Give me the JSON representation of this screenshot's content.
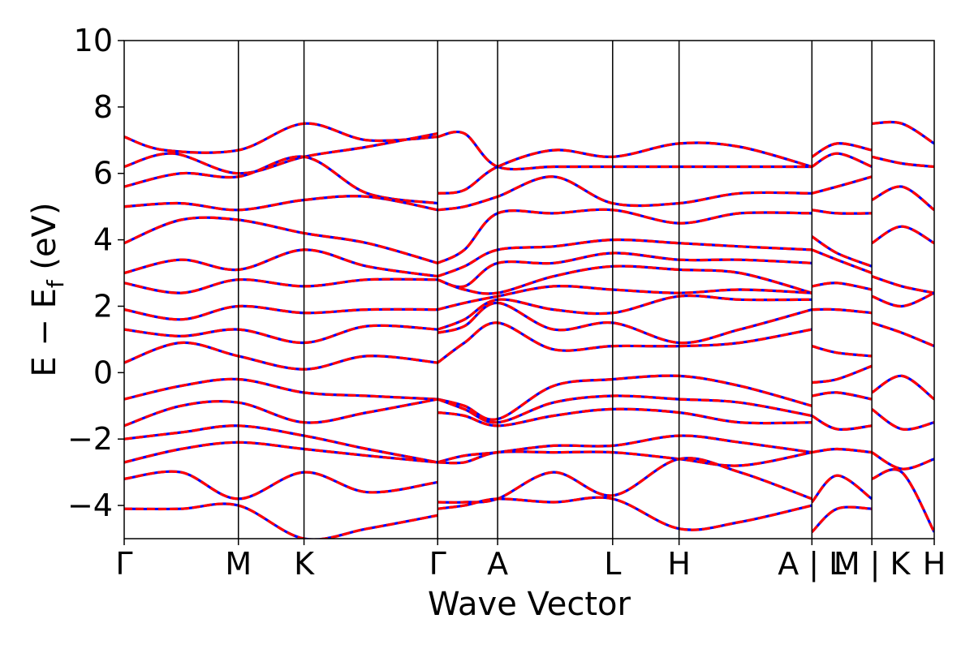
{
  "chart_data": {
    "type": "line",
    "title": "",
    "xlabel": "Wave Vector",
    "ylabel_main": "E − E",
    "ylabel_sub": "f",
    "ylabel_unit": " (eV)",
    "ylim": [
      -5,
      10
    ],
    "yticks": [
      -4,
      -2,
      0,
      2,
      4,
      6,
      8,
      10
    ],
    "ytick_labels": [
      "−4",
      "−2",
      "0",
      "2",
      "4",
      "6",
      "8",
      "10"
    ],
    "xlim": [
      0,
      1
    ],
    "kpoints": [
      {
        "label": "Γ",
        "x": 0.0
      },
      {
        "label": "M",
        "x": 0.141
      },
      {
        "label": "K",
        "x": 0.222
      },
      {
        "label": "Γ",
        "x": 0.387
      },
      {
        "label": "A",
        "x": 0.461
      },
      {
        "label": "L",
        "x": 0.603
      },
      {
        "label": "H",
        "x": 0.685
      },
      {
        "label": "A | L",
        "x": 0.849
      },
      {
        "label": "M | K",
        "x": 0.923
      },
      {
        "label": "H",
        "x": 1.0
      }
    ],
    "grid": false,
    "colors": {
      "band_primary": "#ff0000",
      "band_secondary": "#0000ff",
      "frame": "#000000"
    },
    "series": [
      {
        "x": [
          0,
          0.05,
          0.141,
          0.222,
          0.3,
          0.387
        ],
        "y": [
          7.1,
          6.7,
          6.7,
          7.5,
          7.0,
          7.1
        ]
      },
      {
        "x": [
          0,
          0.06,
          0.141,
          0.222,
          0.3,
          0.387
        ],
        "y": [
          6.2,
          6.6,
          6.0,
          6.5,
          6.8,
          7.2
        ]
      },
      {
        "x": [
          0,
          0.07,
          0.141,
          0.222,
          0.3,
          0.387
        ],
        "y": [
          5.6,
          6.0,
          5.9,
          6.5,
          5.4,
          5.1
        ]
      },
      {
        "x": [
          0,
          0.07,
          0.141,
          0.222,
          0.3,
          0.387
        ],
        "y": [
          5.0,
          5.1,
          4.9,
          5.2,
          5.3,
          4.9
        ]
      },
      {
        "x": [
          0,
          0.07,
          0.141,
          0.222,
          0.3,
          0.387
        ],
        "y": [
          3.9,
          4.6,
          4.6,
          4.2,
          3.9,
          3.3
        ]
      },
      {
        "x": [
          0,
          0.07,
          0.141,
          0.222,
          0.3,
          0.387
        ],
        "y": [
          3.0,
          3.4,
          3.1,
          3.7,
          3.2,
          2.9
        ]
      },
      {
        "x": [
          0,
          0.07,
          0.141,
          0.222,
          0.3,
          0.387
        ],
        "y": [
          2.7,
          2.4,
          2.8,
          2.6,
          2.8,
          2.8
        ]
      },
      {
        "x": [
          0,
          0.07,
          0.141,
          0.222,
          0.3,
          0.387
        ],
        "y": [
          1.9,
          1.6,
          2.0,
          1.8,
          1.9,
          1.9
        ]
      },
      {
        "x": [
          0,
          0.07,
          0.141,
          0.222,
          0.3,
          0.387
        ],
        "y": [
          1.3,
          1.1,
          1.3,
          0.9,
          1.4,
          1.3
        ]
      },
      {
        "x": [
          0,
          0.07,
          0.141,
          0.222,
          0.3,
          0.387
        ],
        "y": [
          0.3,
          0.9,
          0.5,
          0.1,
          0.5,
          0.3
        ]
      },
      {
        "x": [
          0,
          0.07,
          0.141,
          0.222,
          0.3,
          0.387
        ],
        "y": [
          -0.8,
          -0.4,
          -0.2,
          -0.6,
          -0.7,
          -0.8
        ]
      },
      {
        "x": [
          0,
          0.07,
          0.141,
          0.222,
          0.3,
          0.387
        ],
        "y": [
          -1.6,
          -1.0,
          -0.9,
          -1.5,
          -1.2,
          -0.8
        ]
      },
      {
        "x": [
          0,
          0.07,
          0.141,
          0.222,
          0.3,
          0.387
        ],
        "y": [
          -2.0,
          -1.8,
          -1.6,
          -1.9,
          -2.3,
          -2.7
        ]
      },
      {
        "x": [
          0,
          0.07,
          0.141,
          0.222,
          0.3,
          0.387
        ],
        "y": [
          -2.7,
          -2.3,
          -2.1,
          -2.3,
          -2.5,
          -2.7
        ]
      },
      {
        "x": [
          0,
          0.07,
          0.141,
          0.222,
          0.3,
          0.387
        ],
        "y": [
          -3.2,
          -3.0,
          -3.8,
          -3.0,
          -3.6,
          -3.3
        ]
      },
      {
        "x": [
          0,
          0.07,
          0.141,
          0.222,
          0.3,
          0.387
        ],
        "y": [
          -4.1,
          -4.1,
          -4.0,
          -5.0,
          -4.7,
          -4.3
        ]
      },
      {
        "x": [
          0.387,
          0.42,
          0.461,
          0.53,
          0.603,
          0.685,
          0.76,
          0.849
        ],
        "y": [
          7.1,
          7.2,
          6.2,
          6.2,
          6.2,
          6.2,
          6.2,
          6.2
        ]
      },
      {
        "x": [
          0.387,
          0.42,
          0.461,
          0.53,
          0.603,
          0.685,
          0.76,
          0.849
        ],
        "y": [
          5.4,
          5.5,
          6.2,
          6.7,
          6.5,
          6.9,
          6.8,
          6.2
        ]
      },
      {
        "x": [
          0.387,
          0.42,
          0.461,
          0.53,
          0.603,
          0.685,
          0.76,
          0.849
        ],
        "y": [
          4.9,
          5.0,
          5.3,
          5.9,
          5.1,
          5.1,
          5.4,
          5.4
        ]
      },
      {
        "x": [
          0.387,
          0.42,
          0.461,
          0.53,
          0.603,
          0.685,
          0.76,
          0.849
        ],
        "y": [
          3.3,
          3.7,
          4.8,
          4.8,
          4.9,
          4.5,
          4.8,
          4.8
        ]
      },
      {
        "x": [
          0.387,
          0.42,
          0.461,
          0.53,
          0.603,
          0.685,
          0.76,
          0.849
        ],
        "y": [
          2.9,
          3.2,
          3.7,
          3.8,
          4.0,
          3.9,
          3.8,
          3.7
        ]
      },
      {
        "x": [
          0.387,
          0.42,
          0.461,
          0.53,
          0.603,
          0.685,
          0.76,
          0.849
        ],
        "y": [
          2.8,
          2.6,
          3.3,
          3.3,
          3.6,
          3.4,
          3.4,
          3.3
        ]
      },
      {
        "x": [
          0.387,
          0.42,
          0.461,
          0.53,
          0.603,
          0.685,
          0.76,
          0.849
        ],
        "y": [
          2.8,
          2.5,
          2.4,
          2.9,
          3.2,
          3.1,
          3.0,
          2.4
        ]
      },
      {
        "x": [
          0.387,
          0.42,
          0.461,
          0.53,
          0.603,
          0.685,
          0.76,
          0.849
        ],
        "y": [
          1.9,
          2.1,
          2.3,
          2.6,
          2.5,
          2.4,
          2.5,
          2.4
        ]
      },
      {
        "x": [
          0.387,
          0.42,
          0.461,
          0.53,
          0.603,
          0.685,
          0.76,
          0.849
        ],
        "y": [
          1.3,
          1.6,
          2.2,
          1.9,
          1.8,
          2.3,
          2.2,
          2.2
        ]
      },
      {
        "x": [
          0.387,
          0.42,
          0.461,
          0.53,
          0.603,
          0.685,
          0.76,
          0.849
        ],
        "y": [
          1.2,
          1.4,
          2.1,
          1.3,
          1.5,
          0.9,
          1.3,
          1.9
        ]
      },
      {
        "x": [
          0.387,
          0.42,
          0.461,
          0.53,
          0.603,
          0.685,
          0.76,
          0.849
        ],
        "y": [
          0.3,
          0.9,
          1.5,
          0.7,
          0.8,
          0.8,
          0.9,
          1.3
        ]
      },
      {
        "x": [
          0.387,
          0.42,
          0.461,
          0.53,
          0.603,
          0.685,
          0.76,
          0.849
        ],
        "y": [
          -0.8,
          -1.0,
          -1.4,
          -0.4,
          -0.2,
          -0.1,
          -0.4,
          -1.0
        ]
      },
      {
        "x": [
          0.387,
          0.42,
          0.461,
          0.53,
          0.603,
          0.685,
          0.76,
          0.849
        ],
        "y": [
          -0.8,
          -1.1,
          -1.5,
          -0.9,
          -0.7,
          -0.8,
          -0.9,
          -1.3
        ]
      },
      {
        "x": [
          0.387,
          0.42,
          0.461,
          0.53,
          0.603,
          0.685,
          0.76,
          0.849
        ],
        "y": [
          -1.2,
          -1.3,
          -1.6,
          -1.3,
          -1.1,
          -1.2,
          -1.5,
          -1.5
        ]
      },
      {
        "x": [
          0.387,
          0.42,
          0.461,
          0.53,
          0.603,
          0.685,
          0.76,
          0.849
        ],
        "y": [
          -2.7,
          -2.5,
          -2.4,
          -2.2,
          -2.2,
          -1.9,
          -2.1,
          -2.4
        ]
      },
      {
        "x": [
          0.387,
          0.42,
          0.461,
          0.53,
          0.603,
          0.685,
          0.76,
          0.849
        ],
        "y": [
          -2.7,
          -2.7,
          -2.4,
          -2.4,
          -2.4,
          -2.6,
          -2.8,
          -2.4
        ]
      },
      {
        "x": [
          0.387,
          0.42,
          0.461,
          0.53,
          0.603,
          0.685,
          0.76,
          0.849
        ],
        "y": [
          -3.9,
          -3.9,
          -3.8,
          -3.0,
          -3.7,
          -2.6,
          -3.0,
          -3.8
        ]
      },
      {
        "x": [
          0.387,
          0.42,
          0.461,
          0.53,
          0.603,
          0.685,
          0.76,
          0.849
        ],
        "y": [
          -4.1,
          -4.0,
          -3.8,
          -3.9,
          -3.8,
          -4.7,
          -4.5,
          -4.0
        ]
      },
      {
        "x": [
          0.849,
          0.88,
          0.923
        ],
        "y": [
          6.5,
          6.9,
          6.7
        ]
      },
      {
        "x": [
          0.849,
          0.88,
          0.923
        ],
        "y": [
          6.2,
          6.6,
          6.2
        ]
      },
      {
        "x": [
          0.849,
          0.88,
          0.923
        ],
        "y": [
          5.4,
          5.6,
          5.9
        ]
      },
      {
        "x": [
          0.849,
          0.88,
          0.923
        ],
        "y": [
          4.9,
          4.8,
          4.8
        ]
      },
      {
        "x": [
          0.849,
          0.88,
          0.923
        ],
        "y": [
          4.1,
          3.6,
          3.2
        ]
      },
      {
        "x": [
          0.849,
          0.88,
          0.923
        ],
        "y": [
          3.7,
          3.4,
          3.0
        ]
      },
      {
        "x": [
          0.849,
          0.88,
          0.923
        ],
        "y": [
          2.6,
          2.7,
          2.5
        ]
      },
      {
        "x": [
          0.849,
          0.88,
          0.923
        ],
        "y": [
          1.9,
          1.9,
          1.8
        ]
      },
      {
        "x": [
          0.849,
          0.88,
          0.923
        ],
        "y": [
          0.8,
          0.6,
          0.5
        ]
      },
      {
        "x": [
          0.849,
          0.88,
          0.923
        ],
        "y": [
          -0.3,
          -0.2,
          0.2
        ]
      },
      {
        "x": [
          0.849,
          0.88,
          0.923
        ],
        "y": [
          -0.7,
          -0.6,
          -0.8
        ]
      },
      {
        "x": [
          0.849,
          0.88,
          0.923
        ],
        "y": [
          -1.3,
          -1.7,
          -1.6
        ]
      },
      {
        "x": [
          0.849,
          0.88,
          0.923
        ],
        "y": [
          -2.4,
          -2.3,
          -2.4
        ]
      },
      {
        "x": [
          0.849,
          0.88,
          0.923
        ],
        "y": [
          -3.9,
          -3.1,
          -3.8
        ]
      },
      {
        "x": [
          0.849,
          0.88,
          0.923
        ],
        "y": [
          -4.8,
          -4.1,
          -4.1
        ]
      },
      {
        "x": [
          0.923,
          0.96,
          1.0
        ],
        "y": [
          7.5,
          7.5,
          6.9
        ]
      },
      {
        "x": [
          0.923,
          0.96,
          1.0
        ],
        "y": [
          6.5,
          6.3,
          6.2
        ]
      },
      {
        "x": [
          0.923,
          0.96,
          1.0
        ],
        "y": [
          5.2,
          5.6,
          4.9
        ]
      },
      {
        "x": [
          0.923,
          0.96,
          1.0
        ],
        "y": [
          3.9,
          4.4,
          3.9
        ]
      },
      {
        "x": [
          0.923,
          0.96,
          1.0
        ],
        "y": [
          2.9,
          2.6,
          2.4
        ]
      },
      {
        "x": [
          0.923,
          0.96,
          1.0
        ],
        "y": [
          2.3,
          2.0,
          2.4
        ]
      },
      {
        "x": [
          0.923,
          0.96,
          1.0
        ],
        "y": [
          1.5,
          1.2,
          0.8
        ]
      },
      {
        "x": [
          0.923,
          0.96,
          1.0
        ],
        "y": [
          -0.6,
          -0.1,
          -0.8
        ]
      },
      {
        "x": [
          0.923,
          0.96,
          1.0
        ],
        "y": [
          -1.1,
          -1.7,
          -1.5
        ]
      },
      {
        "x": [
          0.923,
          0.96,
          1.0
        ],
        "y": [
          -2.4,
          -2.9,
          -2.6
        ]
      },
      {
        "x": [
          0.923,
          0.96,
          1.0
        ],
        "y": [
          -3.2,
          -3.0,
          -4.8
        ]
      }
    ]
  }
}
